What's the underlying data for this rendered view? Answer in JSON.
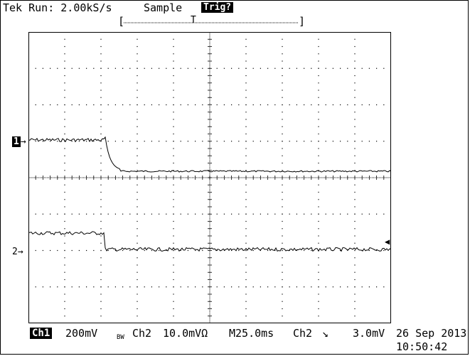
{
  "header": {
    "title": "Tek Run: 2.00kS/s",
    "mode": "Sample",
    "trigger_status": "Trig?",
    "window_left": "[",
    "window_marker": "T",
    "window_right": "]"
  },
  "channels": {
    "ch1_marker_num": "1",
    "ch1_marker_arrow": "→",
    "ch2_marker": "2→",
    "trigger_level_marker": "◀"
  },
  "status_bar": {
    "ch1_label": "Ch1",
    "ch1_scale": "200mV",
    "bw_limit": "BW",
    "ch2_label": "Ch2",
    "ch2_scale": "10.0mVΩ",
    "timebase": "M25.0ms",
    "trigger_source": "Ch2",
    "trigger_slope": "↘",
    "trigger_level": "3.0mV"
  },
  "timestamp": {
    "date": "26 Sep 2013",
    "time": "10:50:42"
  }
}
